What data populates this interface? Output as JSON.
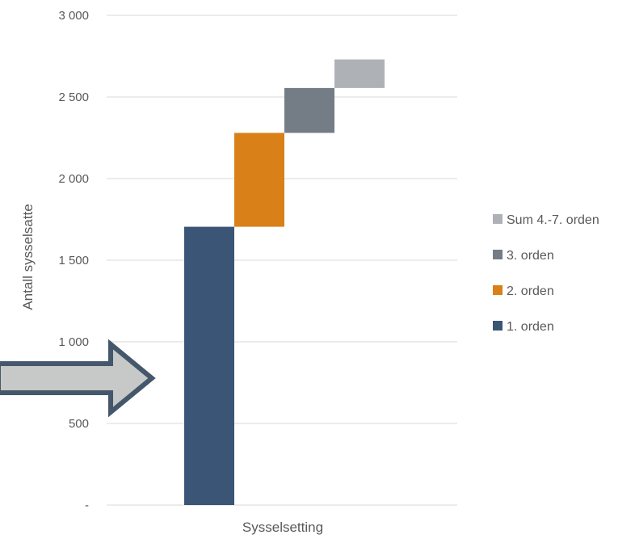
{
  "chart_data": {
    "type": "bar",
    "subtype": "waterfall",
    "categories": [
      "1. orden",
      "2. orden",
      "3. orden",
      "Sum 4.-7. orden"
    ],
    "series": [
      {
        "name": "1. orden",
        "start": 0,
        "end": 1705,
        "value": 1705,
        "color": "#3a5575"
      },
      {
        "name": "2. orden",
        "start": 1705,
        "end": 2280,
        "value": 575,
        "color": "#d98019"
      },
      {
        "name": "3. orden",
        "start": 2280,
        "end": 2555,
        "value": 275,
        "color": "#747c85"
      },
      {
        "name": "Sum 4.-7. orden",
        "start": 2555,
        "end": 2730,
        "value": 175,
        "color": "#aeb2b6"
      }
    ],
    "title": "",
    "xlabel": "Sysselsetting",
    "ylabel": "Antall sysselsatte",
    "ylim": [
      0,
      3000
    ],
    "yticks": [
      0,
      500,
      1000,
      1500,
      2000,
      2500,
      3000
    ],
    "ytick_labels": [
      "-",
      "500",
      "1 000",
      "1 500",
      "2 000",
      "2 500",
      "3 000"
    ],
    "grid": true,
    "legend_position": "right",
    "legend_order": [
      "Sum 4.-7. orden",
      "3. orden",
      "2. orden",
      "1. orden"
    ],
    "annotation": {
      "shape": "arrow",
      "direction": "right",
      "fill": "#c7c9c8",
      "stroke": "#44576b"
    }
  }
}
